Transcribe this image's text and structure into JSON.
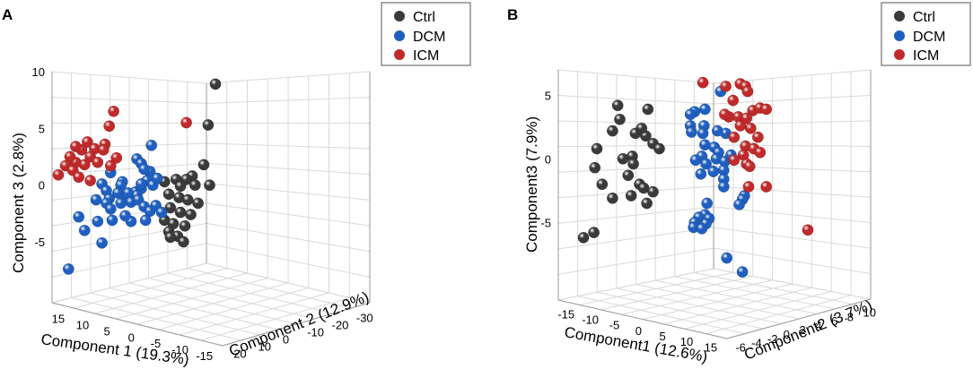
{
  "colors": {
    "Ctrl": "#3a3a3a",
    "DCM": "#1f5fc0",
    "ICM": "#c02a2a"
  },
  "chart_data": [
    {
      "type": "scatter",
      "panel_label": "A",
      "title": "",
      "legend": [
        "Ctrl",
        "DCM",
        "ICM"
      ],
      "xlabel": "Component 1 (19.3%)",
      "ylabel": "Component 2 (12.9%)",
      "zlabel": "Component 3 (2.8%)",
      "x_ticks": [
        "15",
        "10",
        "5",
        "0",
        "-5",
        "-10",
        "-15"
      ],
      "y_ticks": [
        "20",
        "10",
        "0",
        "-10",
        "-20",
        "-30"
      ],
      "z_ticks": [
        "10",
        "5",
        "0",
        "-5"
      ],
      "zlim": [
        -8,
        10
      ],
      "series": [
        {
          "name": "Ctrl",
          "points": [
            [
              4,
              8.9
            ],
            [
              3.5,
              5.3
            ],
            [
              3.2,
              1.8
            ],
            [
              3.6,
              0
            ],
            [
              2.4,
              0.8
            ],
            [
              2.0,
              0.5
            ],
            [
              1.3,
              0.5
            ],
            [
              0.5,
              0.3
            ],
            [
              1.6,
              -0.1
            ],
            [
              2.6,
              0
            ],
            [
              0.8,
              -0.8
            ],
            [
              1.5,
              -1.1
            ],
            [
              2.1,
              -1.3
            ],
            [
              2.8,
              -1.6
            ],
            [
              0.9,
              -2.0
            ],
            [
              1.6,
              -2.4
            ],
            [
              2.3,
              -2.6
            ],
            [
              0.5,
              -3.1
            ],
            [
              1.1,
              -3.4
            ],
            [
              1.9,
              -3.6
            ],
            [
              0.8,
              -4.1
            ],
            [
              1.4,
              -4.5
            ],
            [
              0.9,
              -4.6
            ],
            [
              1.8,
              -5.0
            ]
          ]
        },
        {
          "name": "DCM",
          "points": [
            [
              -0.4,
              3.5
            ],
            [
              -1.4,
              2.3
            ],
            [
              -1.1,
              1.9
            ],
            [
              -0.5,
              1.2
            ],
            [
              -0.9,
              1.4
            ],
            [
              -3.2,
              1.1
            ],
            [
              -3.8,
              0.1
            ],
            [
              -2.4,
              0.3
            ],
            [
              -2.5,
              0
            ],
            [
              -3.5,
              -0.5
            ],
            [
              -2.7,
              -0.7
            ],
            [
              -2.1,
              -1.0
            ],
            [
              -1.5,
              -0.6
            ],
            [
              -1.1,
              -0.3
            ],
            [
              -0.7,
              0.4
            ],
            [
              -0.3,
              0
            ],
            [
              0,
              0.6
            ],
            [
              -1.1,
              0.1
            ],
            [
              -1.4,
              -0.9
            ],
            [
              -2.0,
              -0.7
            ],
            [
              -3.3,
              -1.2
            ],
            [
              -4.2,
              -1.3
            ],
            [
              -3.5,
              -1.6
            ],
            [
              -3.2,
              -2.1
            ],
            [
              -2.5,
              -1.6
            ],
            [
              -1.8,
              -1.5
            ],
            [
              -1.3,
              -1.3
            ],
            [
              -0.9,
              -1.9
            ],
            [
              -0.5,
              -2.3
            ],
            [
              -0.1,
              -1.8
            ],
            [
              0.3,
              -2.4
            ],
            [
              -0.8,
              -3.1
            ],
            [
              -1.8,
              -3.2
            ],
            [
              -2.2,
              -2.7
            ],
            [
              -3.1,
              -3.1
            ],
            [
              -4.1,
              -3.2
            ],
            [
              -3.8,
              -5.1
            ],
            [
              -5.0,
              -4.0
            ],
            [
              -5.4,
              -2.8
            ],
            [
              -6.1,
              -7.4
            ]
          ]
        },
        {
          "name": "ICM",
          "points": [
            [
              -3.0,
              6.5
            ],
            [
              -3.3,
              5.2
            ],
            [
              2.0,
              5.5
            ],
            [
              -4.8,
              3.8
            ],
            [
              -4.3,
              3.2
            ],
            [
              -3.6,
              3.6
            ],
            [
              -3.7,
              3.1
            ],
            [
              -5.2,
              3.1
            ],
            [
              -5.6,
              3.4
            ],
            [
              -4.6,
              2.5
            ],
            [
              -4.1,
              2.0
            ],
            [
              -5.0,
              1.8
            ],
            [
              -5.6,
              2.0
            ],
            [
              -6.0,
              2.5
            ],
            [
              -6.3,
              1.7
            ],
            [
              -5.8,
              1.3
            ],
            [
              -5.4,
              0.7
            ],
            [
              -4.6,
              0.4
            ],
            [
              -6.8,
              0.9
            ],
            [
              -2.8,
              2.4
            ],
            [
              -3.2,
              1.7
            ]
          ]
        }
      ]
    },
    {
      "type": "scatter",
      "panel_label": "B",
      "title": "",
      "legend": [
        "Ctrl",
        "DCM",
        "ICM"
      ],
      "xlabel": "Component1 (12.6%)",
      "ylabel": "Component2 (3.7%)",
      "zlabel": "Component3 (7.9%)",
      "x_ticks": [
        "-15",
        "-10",
        "-5",
        "0",
        "5",
        "10",
        "15"
      ],
      "y_ticks": [
        "-6",
        "-4",
        "-2",
        "0",
        "2",
        "4",
        "6",
        "8",
        "10"
      ],
      "z_ticks": [
        "5",
        "0",
        "-5"
      ],
      "zlim": [
        -9,
        7
      ],
      "series": [
        {
          "name": "Ctrl",
          "points": [
            [
              -10,
              4.2
            ],
            [
              -9.8,
              3.1
            ],
            [
              -7.1,
              3.9
            ],
            [
              -10.5,
              2.2
            ],
            [
              -8.3,
              2.0
            ],
            [
              -7.3,
              1.8
            ],
            [
              -7.7,
              2.4
            ],
            [
              -6.6,
              1.2
            ],
            [
              -6.0,
              0.8
            ],
            [
              -12.0,
              0.8
            ],
            [
              -9.5,
              0
            ],
            [
              -8.6,
              0.2
            ],
            [
              -8.5,
              -0.4
            ],
            [
              -12.2,
              -0.7
            ],
            [
              -9.0,
              -1.3
            ],
            [
              -11.5,
              -2.0
            ],
            [
              -7.9,
              -2.0
            ],
            [
              -7.5,
              -2.3
            ],
            [
              -8.7,
              -2.9
            ],
            [
              -6.6,
              -2.6
            ],
            [
              -10.5,
              -3.1
            ],
            [
              -7.2,
              -3.5
            ],
            [
              -12.3,
              -5.8
            ],
            [
              -13.3,
              -6.2
            ]
          ]
        },
        {
          "name": "DCM",
          "points": [
            [
              -1.6,
              3.9
            ],
            [
              -2.6,
              3.7
            ],
            [
              -3.0,
              3.5
            ],
            [
              -0.1,
              5.3
            ],
            [
              -3.0,
              2.6
            ],
            [
              -1.7,
              2.6
            ],
            [
              -2.9,
              2.1
            ],
            [
              -1.8,
              2.0
            ],
            [
              0.4,
              2.0
            ],
            [
              -0.4,
              2.2
            ],
            [
              -1.6,
              1.1
            ],
            [
              -0.7,
              0.9
            ],
            [
              -0.3,
              0.5
            ],
            [
              -1.9,
              0.2
            ],
            [
              -2.5,
              -0.1
            ],
            [
              -1.5,
              -0.4
            ],
            [
              -0.5,
              0
            ],
            [
              0.3,
              -0.2
            ],
            [
              0.9,
              0.3
            ],
            [
              -2.0,
              -1.2
            ],
            [
              -0.8,
              -1.0
            ],
            [
              0.2,
              -0.9
            ],
            [
              0.2,
              -1.6
            ],
            [
              0.2,
              -2.2
            ],
            [
              2.2,
              -2.9
            ],
            [
              2.0,
              -3.2
            ],
            [
              1.7,
              -3.6
            ],
            [
              -1.4,
              -3.5
            ],
            [
              -1.6,
              -4.4
            ],
            [
              -2.2,
              -4.6
            ],
            [
              -1.2,
              -4.7
            ],
            [
              -1.5,
              -5.1
            ],
            [
              -2.6,
              -5.0
            ],
            [
              -2.7,
              -5.4
            ],
            [
              -1.9,
              -5.5
            ],
            [
              0.5,
              -7.8
            ],
            [
              2.0,
              -8.9
            ]
          ]
        },
        {
          "name": "ICM",
          "points": [
            [
              -1.8,
              6.0
            ],
            [
              0.4,
              5.7
            ],
            [
              1.8,
              5.9
            ],
            [
              2.3,
              5.7
            ],
            [
              2.5,
              5.3
            ],
            [
              1.1,
              4.6
            ],
            [
              3.0,
              3.8
            ],
            [
              3.7,
              4.0
            ],
            [
              4.3,
              3.9
            ],
            [
              0.7,
              3.3
            ],
            [
              1.6,
              3.3
            ],
            [
              2.4,
              3.2
            ],
            [
              0.3,
              3.5
            ],
            [
              1.8,
              2.6
            ],
            [
              2.8,
              2.4
            ],
            [
              3.5,
              1.7
            ],
            [
              1.2,
              1.7
            ],
            [
              2.3,
              1.0
            ],
            [
              3.1,
              0.8
            ],
            [
              2.1,
              0.3
            ],
            [
              3.7,
              0.5
            ],
            [
              2.4,
              -0.4
            ],
            [
              1.2,
              -0.1
            ],
            [
              2.7,
              -0.6
            ],
            [
              2.6,
              -2.2
            ],
            [
              4.3,
              -2.2
            ],
            [
              8.3,
              -5.6
            ]
          ]
        }
      ]
    }
  ]
}
